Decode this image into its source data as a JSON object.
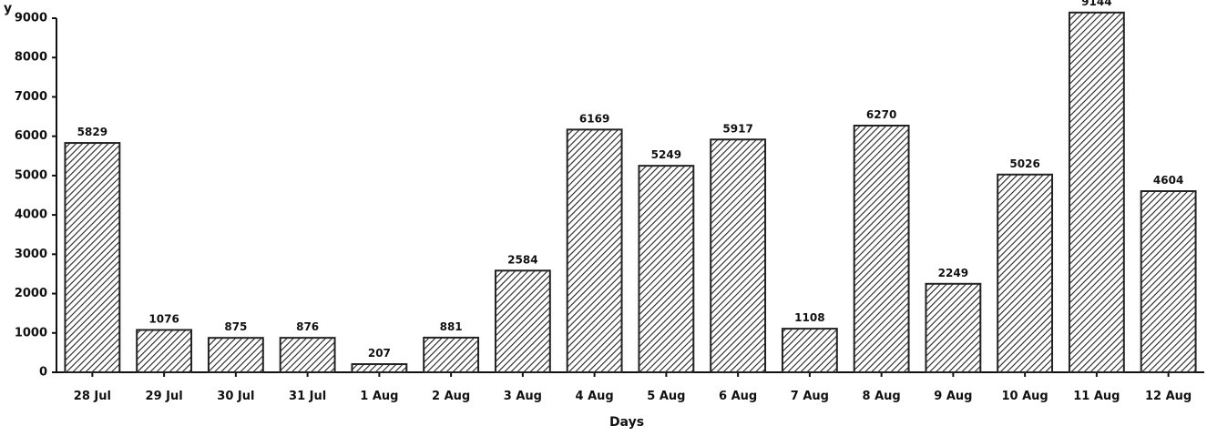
{
  "chart_data": {
    "type": "bar",
    "title": "",
    "top_left_text": "y   ",
    "xlabel": "Days",
    "ylabel": "",
    "ylim": [
      0,
      9000
    ],
    "yticks": [
      0,
      1000,
      2000,
      3000,
      4000,
      5000,
      6000,
      7000,
      8000,
      9000
    ],
    "categories": [
      "28 Jul",
      "29 Jul",
      "30 Jul",
      "31 Jul",
      "1 Aug",
      "2 Aug",
      "3 Aug",
      "4 Aug",
      "5 Aug",
      "6 Aug",
      "7 Aug",
      "8 Aug",
      "9 Aug",
      "10 Aug",
      "11 Aug",
      "12 Aug"
    ],
    "values": [
      5829,
      1076,
      875,
      876,
      207,
      881,
      2584,
      6169,
      5249,
      5917,
      1108,
      6270,
      2249,
      5026,
      9144,
      4604
    ],
    "data_labels": [
      "5829",
      "1076",
      "875",
      "876",
      "207",
      "881",
      "2584",
      "6169",
      "5249",
      "5917",
      "1108",
      "6270",
      "2249",
      "5026",
      "9144",
      "4604"
    ],
    "bar_style": "diagonal-hatch",
    "bar_color": "#222222",
    "grid": false,
    "legend": "none"
  }
}
